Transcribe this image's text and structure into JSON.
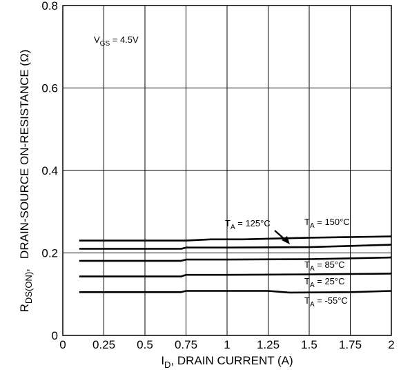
{
  "chart_data": {
    "type": "line",
    "title": "",
    "xlabel": {
      "main": "I",
      "sub": "D",
      "rest": ", DRAIN CURRENT (A)"
    },
    "ylabel": {
      "main": "R",
      "sub": "DS(ON)",
      "rest": ",   DRAIN-SOURCE ON-RESISTANCE (Ω)"
    },
    "xlim": [
      0,
      2
    ],
    "ylim": [
      0,
      0.8
    ],
    "x_ticks": [
      {
        "value": 0,
        "label": "0"
      },
      {
        "value": 0.25,
        "label": "0.25"
      },
      {
        "value": 0.5,
        "label": "0.5"
      },
      {
        "value": 0.75,
        "label": "0.75"
      },
      {
        "value": 1,
        "label": "1"
      },
      {
        "value": 1.25,
        "label": "1.25"
      },
      {
        "value": 1.5,
        "label": "1.5"
      },
      {
        "value": 1.75,
        "label": "1.75"
      },
      {
        "value": 2,
        "label": "2"
      }
    ],
    "y_ticks": [
      {
        "value": 0,
        "label": "0"
      },
      {
        "value": 0.2,
        "label": "0.2"
      },
      {
        "value": 0.4,
        "label": "0.4"
      },
      {
        "value": 0.6,
        "label": "0.6"
      },
      {
        "value": 0.8,
        "label": "0.8"
      }
    ],
    "grid": true,
    "condition": {
      "main": "V",
      "sub": "GS",
      "rest": " = 4.5V"
    },
    "series": [
      {
        "name": "T_A = 150°C",
        "label_main": "T",
        "label_sub": "A",
        "label_rest": " = 150°C",
        "x": [
          0.1,
          0.5,
          0.75,
          0.9,
          1.1,
          1.5,
          2.0
        ],
        "y": [
          0.23,
          0.23,
          0.23,
          0.233,
          0.233,
          0.237,
          0.24
        ]
      },
      {
        "name": "T_A = 125°C",
        "label_main": "T",
        "label_sub": "A",
        "label_rest": " = 125°C",
        "x": [
          0.1,
          0.5,
          0.72,
          0.75,
          1.0,
          1.5,
          2.0
        ],
        "y": [
          0.21,
          0.21,
          0.21,
          0.213,
          0.213,
          0.214,
          0.22
        ]
      },
      {
        "name": "T_A = 85°C",
        "label_main": "T",
        "label_sub": "A",
        "label_rest": " = 85°C",
        "x": [
          0.1,
          0.5,
          0.72,
          0.75,
          1.0,
          1.5,
          2.0
        ],
        "y": [
          0.181,
          0.181,
          0.181,
          0.184,
          0.184,
          0.185,
          0.189
        ]
      },
      {
        "name": "T_A = 25°C",
        "label_main": "T",
        "label_sub": "A",
        "label_rest": " = 25°C",
        "x": [
          0.1,
          0.5,
          0.72,
          0.75,
          1.0,
          1.5,
          2.0
        ],
        "y": [
          0.143,
          0.143,
          0.143,
          0.147,
          0.147,
          0.148,
          0.15
        ]
      },
      {
        "name": "T_A = -55°C",
        "label_main": "T",
        "label_sub": "A",
        "label_rest": " = -55°C",
        "x": [
          0.1,
          0.5,
          0.72,
          0.75,
          1.25,
          1.38,
          1.75,
          2.0
        ],
        "y": [
          0.105,
          0.105,
          0.105,
          0.108,
          0.108,
          0.104,
          0.105,
          0.108
        ]
      }
    ]
  }
}
